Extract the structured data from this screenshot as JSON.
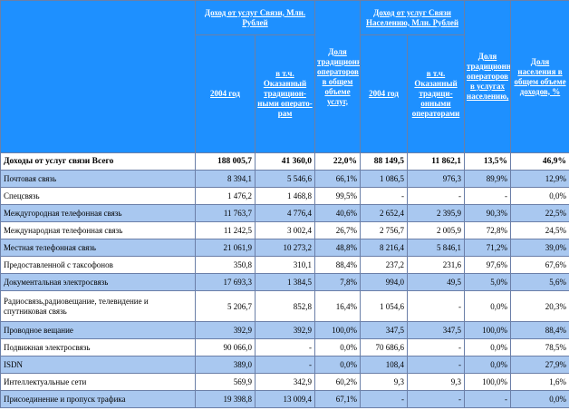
{
  "headers": {
    "group1": "Доход от услуг Связи, Млн. Рублей",
    "group1_sub1": "2004 год",
    "group1_sub2": "в т.ч. Оказанный традицион-ными операто-рам",
    "share_trad": "Доля традиционных операторов в общем объеме услуг,",
    "group2": "Доход от услуг Связи Населению, Млн. Рублей",
    "group2_sub1": "2004 год",
    "group2_sub2": "в т.ч. Оказанный традици-онными операторами",
    "share_trad_pop": "Доля традиционных операторов в услугах населению,",
    "share_pop": "Доля населения в общем объеме доходов, %"
  },
  "rows": [
    {
      "label": "Доходы от услуг связи Всего",
      "c1": "188 005,7",
      "c2": "41 360,0",
      "c3": "22,0%",
      "c4": "88 149,5",
      "c5": "11 862,1",
      "c6": "13,5%",
      "c7": "46,9%"
    },
    {
      "label": "Почтовая связь",
      "c1": "8 394,1",
      "c2": "5 546,6",
      "c3": "66,1%",
      "c4": "1 086,5",
      "c5": "976,3",
      "c6": "89,9%",
      "c7": "12,9%"
    },
    {
      "label": "Спецсвязь",
      "c1": "1 476,2",
      "c2": "1 468,8",
      "c3": "99,5%",
      "c4": "-",
      "c5": "-",
      "c6": "-",
      "c7": "0,0%"
    },
    {
      "label": "Междугородная телефонная связь",
      "c1": "11 763,7",
      "c2": "4 776,4",
      "c3": "40,6%",
      "c4": "2 652,4",
      "c5": "2 395,9",
      "c6": "90,3%",
      "c7": "22,5%"
    },
    {
      "label": "Международная телефонная связь",
      "c1": "11 242,5",
      "c2": "3 002,4",
      "c3": "26,7%",
      "c4": "2 756,7",
      "c5": "2 005,9",
      "c6": "72,8%",
      "c7": "24,5%"
    },
    {
      "label": "Местная телефонная связь",
      "c1": "21 061,9",
      "c2": "10 273,2",
      "c3": "48,8%",
      "c4": "8 216,4",
      "c5": "5 846,1",
      "c6": "71,2%",
      "c7": "39,0%"
    },
    {
      "label": "Предоставленной с таксофонов",
      "c1": "350,8",
      "c2": "310,1",
      "c3": "88,4%",
      "c4": "237,2",
      "c5": "231,6",
      "c6": "97,6%",
      "c7": "67,6%"
    },
    {
      "label": "Документальная электросвязь",
      "c1": "17 693,3",
      "c2": "1 384,5",
      "c3": "7,8%",
      "c4": "994,0",
      "c5": "49,5",
      "c6": "5,0%",
      "c7": "5,6%"
    },
    {
      "label": "Радиосвязь,радиовещание, телевидение и спутниковая связь",
      "c1": "5 206,7",
      "c2": "852,8",
      "c3": "16,4%",
      "c4": "1 054,6",
      "c5": "-",
      "c6": "0,0%",
      "c7": "20,3%"
    },
    {
      "label": "Проводное вещание",
      "c1": "392,9",
      "c2": "392,9",
      "c3": "100,0%",
      "c4": "347,5",
      "c5": "347,5",
      "c6": "100,0%",
      "c7": "88,4%"
    },
    {
      "label": "Подвижная электросвязь",
      "c1": "90 066,0",
      "c2": "-",
      "c3": "0,0%",
      "c4": "70 686,6",
      "c5": "-",
      "c6": "0,0%",
      "c7": "78,5%"
    },
    {
      "label": "ISDN",
      "c1": "389,0",
      "c2": "-",
      "c3": "0,0%",
      "c4": "108,4",
      "c5": "-",
      "c6": "0,0%",
      "c7": "27,9%"
    },
    {
      "label": "Интеллектуальные сети",
      "c1": "569,9",
      "c2": "342,9",
      "c3": "60,2%",
      "c4": "9,3",
      "c5": "9,3",
      "c6": "100,0%",
      "c7": "1,6%"
    },
    {
      "label": "Присоединение и пропуск трафика",
      "c1": "19 398,8",
      "c2": "13 009,4",
      "c3": "67,1%",
      "c4": "-",
      "c5": "-",
      "c6": "-",
      "c7": "0,0%"
    }
  ],
  "colors": {
    "header_blue": "#1e90ff",
    "row_blue": "#a9c8f0",
    "row_white": "#ffffff",
    "border": "#6b7fa8"
  }
}
